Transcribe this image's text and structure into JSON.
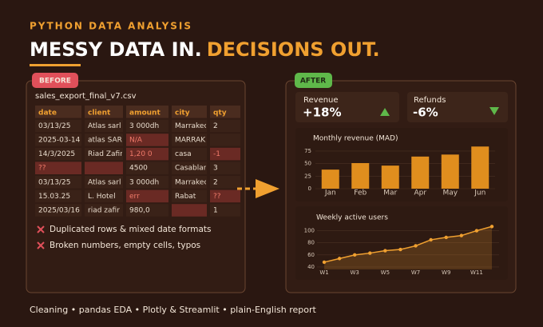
{
  "header": {
    "kicker": "PYTHON DATA ANALYSIS",
    "title_part1": "MESSY DATA IN.",
    "title_part2": "DECISIONS OUT."
  },
  "before": {
    "badge": "BEFORE",
    "filename": "sales_export_final_v7.csv",
    "columns": [
      "date",
      "client",
      "amount",
      "city",
      "qty"
    ],
    "rows": [
      [
        "03/13/25",
        "Atlas sarl",
        "3 000dh",
        "Marrakech",
        "2"
      ],
      [
        "2025-03-14",
        "atlas SARL",
        "N/A",
        "MARRAKES",
        null
      ],
      [
        "14/3/2025",
        "Riad Zafir",
        "1,20 0",
        "casa",
        "-1"
      ],
      [
        "??",
        null,
        "4500",
        "Casablanca",
        "3"
      ],
      [
        "03/13/25",
        "Atlas sarl",
        "3 000dh",
        "Marrakech",
        "2"
      ],
      [
        "15.03.25",
        "L. Hotel",
        "err",
        "Rabat",
        "??"
      ],
      [
        "2025/03/16",
        "riad  zafir",
        "980,0",
        null,
        "1"
      ]
    ],
    "issues": [
      "Duplicated rows & mixed date formats",
      "Broken numbers, empty cells, typos"
    ]
  },
  "after": {
    "badge": "AFTER",
    "kpis": [
      {
        "label": "Revenue",
        "value": "+18%"
      },
      {
        "label": "Refunds",
        "value": "-6%"
      }
    ]
  },
  "chart_data": [
    {
      "type": "bar",
      "title": "Monthly revenue (MAD)",
      "categories": [
        "Jan",
        "Feb",
        "Mar",
        "Apr",
        "May",
        "Jun"
      ],
      "values": [
        38,
        51,
        46,
        64,
        68,
        84
      ],
      "color": "#e08e1e",
      "ylim": [
        0,
        90
      ],
      "yticks": [
        0,
        25,
        50,
        75
      ],
      "grid": true
    },
    {
      "type": "line",
      "title": "Weekly active users",
      "categories": [
        "W1",
        null,
        "W3",
        null,
        "W5",
        null,
        "W7",
        null,
        "W9",
        null,
        "W11",
        null
      ],
      "values": [
        48,
        54,
        60,
        63,
        67,
        69,
        75,
        85,
        89,
        92,
        100,
        107
      ],
      "color": "#f0a030",
      "ylim": [
        36,
        110
      ],
      "yticks": [
        40,
        60,
        80,
        100
      ],
      "grid": true
    }
  ],
  "footer": {
    "items": [
      "Cleaning",
      "pandas EDA",
      "Plotly & Streamlit",
      "plain-English report"
    ]
  }
}
